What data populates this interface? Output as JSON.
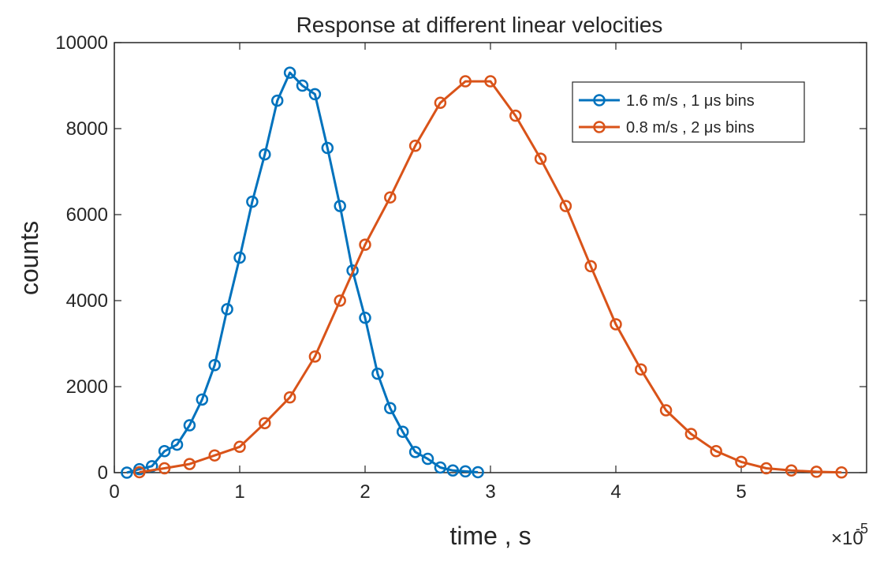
{
  "chart_data": {
    "type": "line",
    "title": "Response at different linear velocities",
    "xlabel": "time , s",
    "ylabel": "counts",
    "x_multiplier": {
      "base": "×10",
      "exponent": "-5"
    },
    "xlim": [
      0,
      6
    ],
    "ylim": [
      0,
      10000
    ],
    "x_ticks": [
      0,
      1,
      2,
      3,
      4,
      5
    ],
    "y_ticks": [
      0,
      2000,
      4000,
      6000,
      8000,
      10000
    ],
    "grid": false,
    "legend_position": "top-right",
    "series": [
      {
        "name": "1.6 m/s , 1 μs bins",
        "color": "#0072BD",
        "marker": "circle",
        "x": [
          0.1,
          0.2,
          0.3,
          0.4,
          0.5,
          0.6,
          0.7,
          0.8,
          0.9,
          1.0,
          1.1,
          1.2,
          1.3,
          1.4,
          1.5,
          1.6,
          1.7,
          1.8,
          1.9,
          2.0,
          2.1,
          2.2,
          2.3,
          2.4,
          2.5,
          2.6,
          2.7,
          2.8,
          2.9
        ],
        "y": [
          0,
          80,
          150,
          500,
          650,
          1100,
          1700,
          2500,
          3800,
          5000,
          6300,
          7400,
          8650,
          9300,
          9000,
          8800,
          7550,
          6200,
          4700,
          3600,
          2300,
          1500,
          950,
          480,
          320,
          120,
          50,
          30,
          10
        ]
      },
      {
        "name": "0.8 m/s , 2 μs bins",
        "color": "#D95319",
        "marker": "circle",
        "x": [
          0.2,
          0.4,
          0.6,
          0.8,
          1.0,
          1.2,
          1.4,
          1.6,
          1.8,
          2.0,
          2.2,
          2.4,
          2.6,
          2.8,
          3.0,
          3.2,
          3.4,
          3.6,
          3.8,
          4.0,
          4.2,
          4.4,
          4.6,
          4.8,
          5.0,
          5.2,
          5.4,
          5.6,
          5.8
        ],
        "y": [
          10,
          100,
          200,
          400,
          600,
          1150,
          1750,
          2700,
          4000,
          5300,
          6400,
          7600,
          8600,
          9100,
          9100,
          8300,
          7300,
          6200,
          4800,
          3450,
          2400,
          1450,
          900,
          500,
          250,
          100,
          50,
          20,
          5
        ]
      }
    ]
  }
}
